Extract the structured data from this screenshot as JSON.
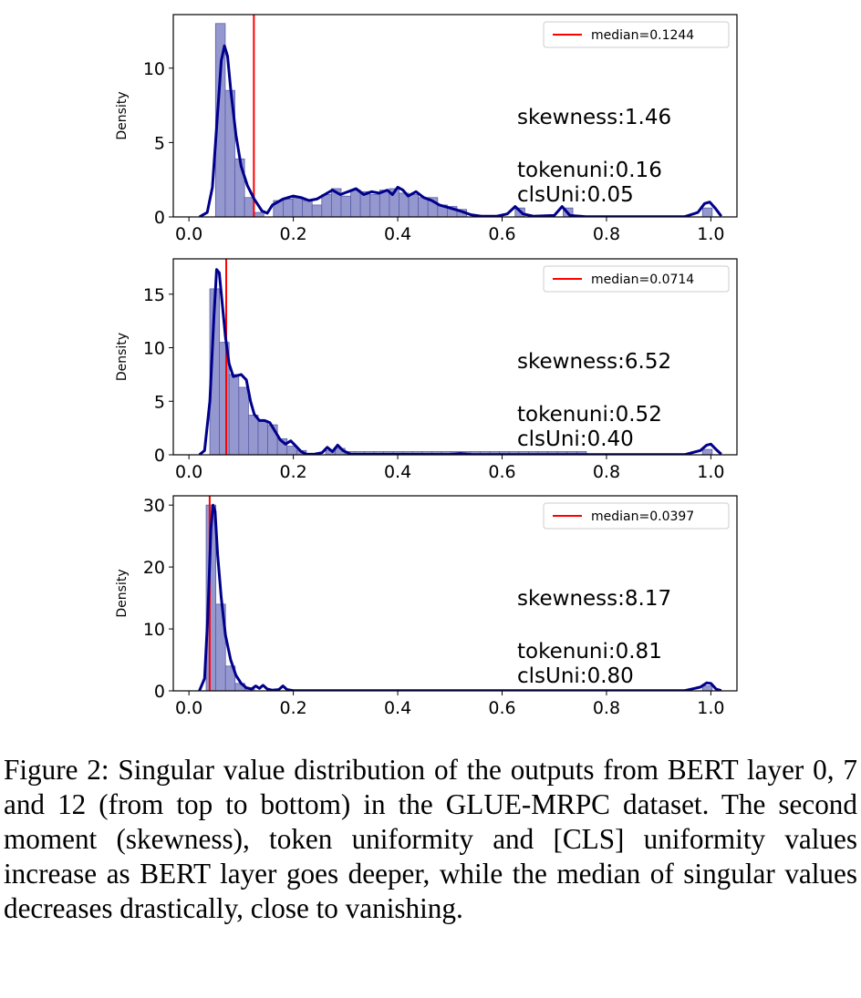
{
  "caption": "Figure 2: Singular value distribution of the outputs from BERT layer 0, 7 and 12 (from top to bottom) in the GLUE-MRPC dataset. The second moment (skewness), token uniformity and [CLS] uniformity values increase as BERT layer goes deeper, while the median of singular values decreases drastically, close to vanishing.",
  "colors": {
    "bar_fill": "#8f92cc",
    "bar_edge": "#5a5ea8",
    "kde": "#00008b",
    "median": "#ff0000"
  },
  "chart_data": [
    {
      "type": "bar",
      "ylabel": "Density",
      "xlim": [
        -0.03,
        1.05
      ],
      "ylim": [
        0,
        13.6
      ],
      "xticks": [
        0.0,
        0.2,
        0.4,
        0.6,
        0.8,
        1.0
      ],
      "xtick_labels": [
        "0.0",
        "0.2",
        "0.4",
        "0.6",
        "0.8",
        "1.0"
      ],
      "yticks": [
        0,
        5,
        10
      ],
      "ytick_labels": [
        "0",
        "5",
        "10"
      ],
      "bin_width": 0.0185,
      "bins": [
        [
          0.051,
          13
        ],
        [
          0.0695,
          8.5
        ],
        [
          0.088,
          3.9
        ],
        [
          0.1065,
          1.3
        ],
        [
          0.125,
          0.3
        ],
        [
          0.162,
          1.1
        ],
        [
          0.1805,
          1.2
        ],
        [
          0.199,
          1.3
        ],
        [
          0.2175,
          1.1
        ],
        [
          0.236,
          0.8
        ],
        [
          0.2545,
          1.5
        ],
        [
          0.273,
          1.9
        ],
        [
          0.2915,
          1.4
        ],
        [
          0.31,
          1.8
        ],
        [
          0.3285,
          1.7
        ],
        [
          0.347,
          1.5
        ],
        [
          0.3655,
          1.8
        ],
        [
          0.384,
          1.9
        ],
        [
          0.4025,
          1.6
        ],
        [
          0.421,
          1.5
        ],
        [
          0.4395,
          1.3
        ],
        [
          0.458,
          1.3
        ],
        [
          0.4765,
          0.8
        ],
        [
          0.495,
          0.7
        ],
        [
          0.5135,
          0.5
        ],
        [
          0.625,
          0.6
        ],
        [
          0.717,
          0.6
        ],
        [
          0.984,
          0.6
        ]
      ],
      "kde": [
        [
          0.02,
          0
        ],
        [
          0.035,
          0.3
        ],
        [
          0.045,
          2
        ],
        [
          0.055,
          7
        ],
        [
          0.062,
          10.5
        ],
        [
          0.068,
          11.5
        ],
        [
          0.074,
          10.8
        ],
        [
          0.08,
          8.6
        ],
        [
          0.09,
          5.5
        ],
        [
          0.1,
          3.4
        ],
        [
          0.112,
          2.1
        ],
        [
          0.125,
          1.2
        ],
        [
          0.14,
          0.4
        ],
        [
          0.15,
          0.25
        ],
        [
          0.16,
          0.8
        ],
        [
          0.18,
          1.2
        ],
        [
          0.2,
          1.4
        ],
        [
          0.215,
          1.3
        ],
        [
          0.23,
          1.1
        ],
        [
          0.245,
          1.2
        ],
        [
          0.26,
          1.5
        ],
        [
          0.275,
          1.8
        ],
        [
          0.29,
          1.5
        ],
        [
          0.305,
          1.7
        ],
        [
          0.32,
          1.9
        ],
        [
          0.335,
          1.5
        ],
        [
          0.35,
          1.7
        ],
        [
          0.365,
          1.6
        ],
        [
          0.38,
          1.8
        ],
        [
          0.39,
          1.5
        ],
        [
          0.4,
          2.0
        ],
        [
          0.41,
          1.8
        ],
        [
          0.42,
          1.4
        ],
        [
          0.435,
          1.7
        ],
        [
          0.45,
          1.3
        ],
        [
          0.465,
          1.1
        ],
        [
          0.48,
          0.8
        ],
        [
          0.5,
          0.6
        ],
        [
          0.52,
          0.4
        ],
        [
          0.54,
          0.15
        ],
        [
          0.56,
          0.05
        ],
        [
          0.59,
          0.05
        ],
        [
          0.61,
          0.2
        ],
        [
          0.625,
          0.7
        ],
        [
          0.64,
          0.2
        ],
        [
          0.66,
          0.05
        ],
        [
          0.7,
          0.1
        ],
        [
          0.715,
          0.7
        ],
        [
          0.73,
          0.1
        ],
        [
          0.76,
          0.02
        ],
        [
          0.95,
          0.02
        ],
        [
          0.975,
          0.3
        ],
        [
          0.988,
          0.9
        ],
        [
          0.998,
          1.0
        ],
        [
          1.008,
          0.6
        ],
        [
          1.02,
          0.05
        ]
      ],
      "median": 0.1244,
      "legend_label": "median=0.1244",
      "annotations": [
        "skewness:1.46",
        "tokenuni:0.16",
        "clsUni:0.05"
      ]
    },
    {
      "type": "bar",
      "ylabel": "Density",
      "xlim": [
        -0.03,
        1.05
      ],
      "ylim": [
        0,
        18.3
      ],
      "xticks": [
        0.0,
        0.2,
        0.4,
        0.6,
        0.8,
        1.0
      ],
      "xtick_labels": [
        "0.0",
        "0.2",
        "0.4",
        "0.6",
        "0.8",
        "1.0"
      ],
      "yticks": [
        0,
        5,
        10,
        15
      ],
      "ytick_labels": [
        "0",
        "5",
        "10",
        "15"
      ],
      "bin_width": 0.0185,
      "bins": [
        [
          0.04,
          15.5
        ],
        [
          0.0585,
          10.5
        ],
        [
          0.077,
          7.5
        ],
        [
          0.0955,
          6.3
        ],
        [
          0.114,
          3.7
        ],
        [
          0.1325,
          3.2
        ],
        [
          0.151,
          2.8
        ],
        [
          0.1695,
          1.5
        ],
        [
          0.188,
          0.8
        ],
        [
          0.2065,
          0.4
        ],
        [
          0.262,
          0.4
        ],
        [
          0.2805,
          0.6
        ],
        [
          0.299,
          0.3
        ],
        [
          0.3175,
          0.3
        ],
        [
          0.336,
          0.3
        ],
        [
          0.3545,
          0.3
        ],
        [
          0.373,
          0.3
        ],
        [
          0.3915,
          0.3
        ],
        [
          0.41,
          0.3
        ],
        [
          0.4285,
          0.3
        ],
        [
          0.447,
          0.3
        ],
        [
          0.4655,
          0.3
        ],
        [
          0.484,
          0.3
        ],
        [
          0.5025,
          0.3
        ],
        [
          0.521,
          0.3
        ],
        [
          0.5395,
          0.3
        ],
        [
          0.558,
          0.3
        ],
        [
          0.5765,
          0.3
        ],
        [
          0.595,
          0.3
        ],
        [
          0.6135,
          0.3
        ],
        [
          0.632,
          0.3
        ],
        [
          0.6505,
          0.3
        ],
        [
          0.669,
          0.3
        ],
        [
          0.6875,
          0.3
        ],
        [
          0.706,
          0.3
        ],
        [
          0.7245,
          0.3
        ],
        [
          0.743,
          0.3
        ],
        [
          0.984,
          0.5
        ]
      ],
      "kde": [
        [
          0.02,
          0
        ],
        [
          0.03,
          0.4
        ],
        [
          0.04,
          5
        ],
        [
          0.048,
          13
        ],
        [
          0.053,
          17.3
        ],
        [
          0.058,
          17
        ],
        [
          0.064,
          14
        ],
        [
          0.07,
          11
        ],
        [
          0.077,
          8.5
        ],
        [
          0.085,
          7.3
        ],
        [
          0.1,
          7.5
        ],
        [
          0.11,
          7
        ],
        [
          0.118,
          5
        ],
        [
          0.125,
          3.8
        ],
        [
          0.135,
          3.2
        ],
        [
          0.145,
          3.2
        ],
        [
          0.155,
          3.0
        ],
        [
          0.165,
          2.2
        ],
        [
          0.175,
          1.4
        ],
        [
          0.185,
          1.0
        ],
        [
          0.195,
          1.3
        ],
        [
          0.205,
          0.8
        ],
        [
          0.215,
          0.3
        ],
        [
          0.225,
          0.05
        ],
        [
          0.24,
          0.05
        ],
        [
          0.255,
          0.2
        ],
        [
          0.265,
          0.7
        ],
        [
          0.275,
          0.3
        ],
        [
          0.285,
          0.9
        ],
        [
          0.295,
          0.4
        ],
        [
          0.31,
          0.05
        ],
        [
          0.5,
          0.03
        ],
        [
          0.52,
          0.12
        ],
        [
          0.54,
          0.03
        ],
        [
          0.95,
          0.02
        ],
        [
          0.98,
          0.4
        ],
        [
          0.992,
          0.9
        ],
        [
          1.0,
          1.0
        ],
        [
          1.01,
          0.5
        ],
        [
          1.02,
          0.05
        ]
      ],
      "median": 0.0714,
      "legend_label": "median=0.0714",
      "annotations": [
        "skewness:6.52",
        "tokenuni:0.52",
        "clsUni:0.40"
      ]
    },
    {
      "type": "bar",
      "ylabel": "Density",
      "xlim": [
        -0.03,
        1.05
      ],
      "ylim": [
        0,
        31.5
      ],
      "xticks": [
        0.0,
        0.2,
        0.4,
        0.6,
        0.8,
        1.0
      ],
      "xtick_labels": [
        "0.0",
        "0.2",
        "0.4",
        "0.6",
        "0.8",
        "1.0"
      ],
      "yticks": [
        0,
        10,
        20,
        30
      ],
      "ytick_labels": [
        "0",
        "10",
        "20",
        "30"
      ],
      "bin_width": 0.0185,
      "bins": [
        [
          0.033,
          30
        ],
        [
          0.0515,
          14
        ],
        [
          0.07,
          4
        ],
        [
          0.0885,
          1.2
        ],
        [
          0.107,
          0.3
        ],
        [
          0.984,
          0.8
        ]
      ],
      "kde": [
        [
          0.02,
          0
        ],
        [
          0.03,
          2
        ],
        [
          0.036,
          12
        ],
        [
          0.042,
          26
        ],
        [
          0.046,
          30
        ],
        [
          0.05,
          29
        ],
        [
          0.055,
          22
        ],
        [
          0.062,
          15
        ],
        [
          0.07,
          9
        ],
        [
          0.08,
          5
        ],
        [
          0.09,
          2.5
        ],
        [
          0.1,
          1.2
        ],
        [
          0.11,
          0.5
        ],
        [
          0.12,
          0.3
        ],
        [
          0.128,
          0.8
        ],
        [
          0.135,
          0.4
        ],
        [
          0.142,
          0.9
        ],
        [
          0.15,
          0.3
        ],
        [
          0.16,
          0.1
        ],
        [
          0.172,
          0.2
        ],
        [
          0.18,
          0.8
        ],
        [
          0.188,
          0.2
        ],
        [
          0.2,
          0.05
        ],
        [
          0.95,
          0.05
        ],
        [
          0.98,
          0.6
        ],
        [
          0.992,
          1.3
        ],
        [
          1.0,
          1.2
        ],
        [
          1.01,
          0.3
        ],
        [
          1.02,
          0.05
        ]
      ],
      "median": 0.0397,
      "legend_label": "median=0.0397",
      "annotations": [
        "skewness:8.17",
        "tokenuni:0.81",
        "clsUni:0.80"
      ]
    }
  ]
}
